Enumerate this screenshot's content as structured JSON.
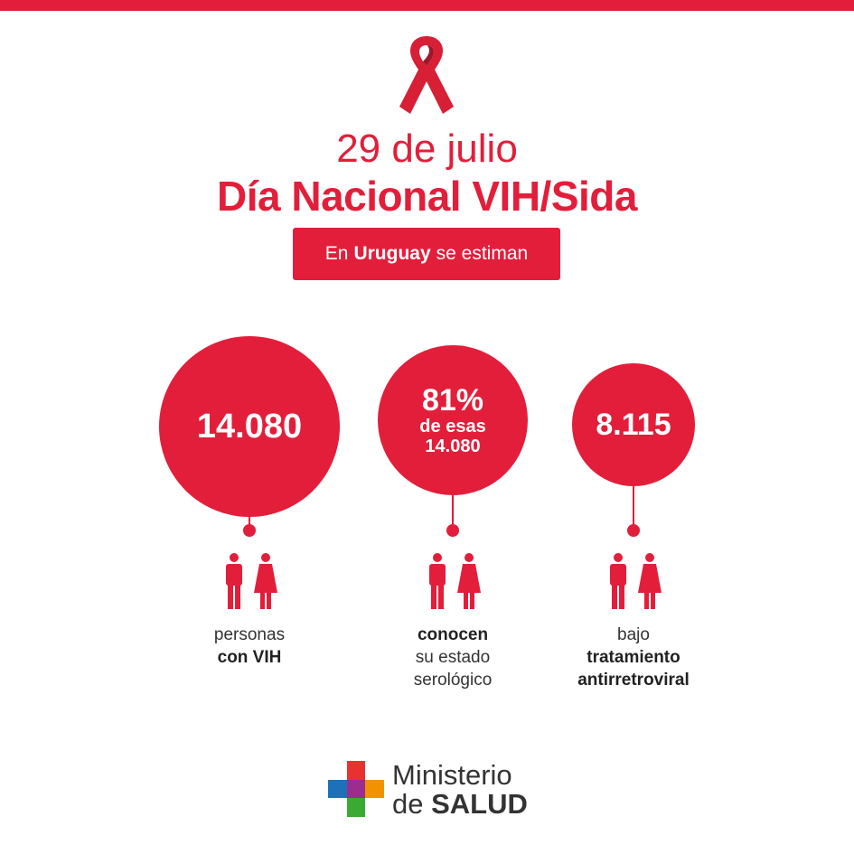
{
  "header": {
    "date": "29 de julio",
    "title": "Día Nacional VIH/Sida",
    "pill": {
      "prefix": "En",
      "highlight": "Uruguay",
      "suffix": "se estiman"
    }
  },
  "stats": [
    {
      "value": "14.080",
      "caption_light": "personas",
      "caption_bold": "con VIH"
    },
    {
      "value": "81%",
      "value_sub1": "de esas",
      "value_sub2": "14.080",
      "caption_bold": "conocen",
      "caption_light1": "su estado",
      "caption_light2": "serológico"
    },
    {
      "value": "8.115",
      "caption_light": "bajo",
      "caption_bold1": "tratamiento",
      "caption_bold2": "antirretroviral"
    }
  ],
  "logo": {
    "line1": "Ministerio",
    "line2_prefix": "de",
    "line2_bold": "SALUD"
  },
  "colors": {
    "brand_red": "#e31e3a",
    "text_dark": "#333333"
  },
  "icons": [
    "red-ribbon-icon",
    "man-woman-icon",
    "ministerio-cross-logo"
  ]
}
